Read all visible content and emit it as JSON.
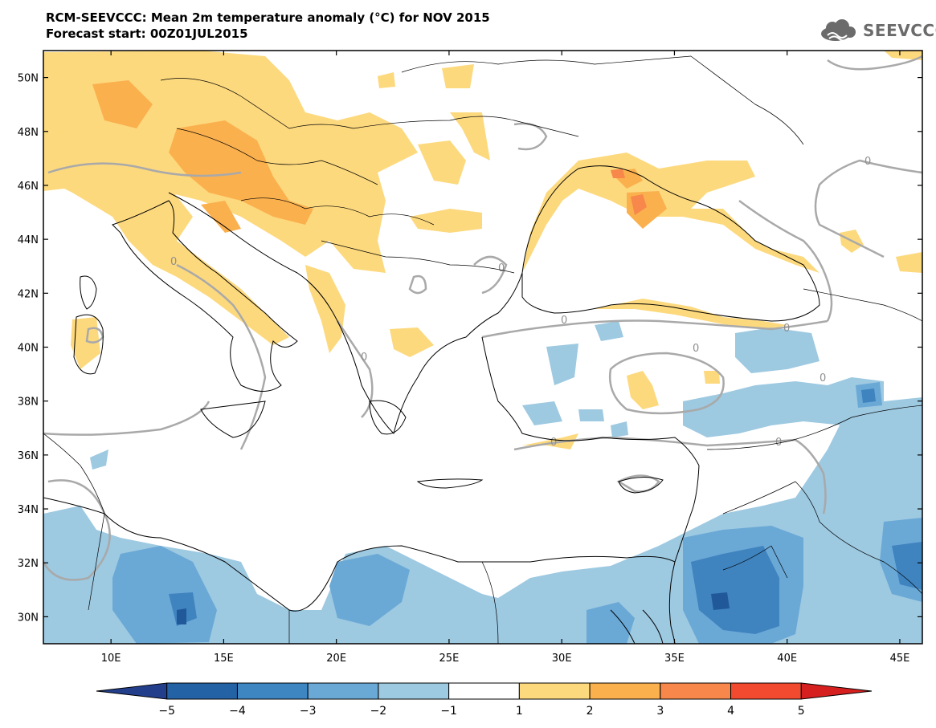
{
  "title": {
    "line1": "RCM-SEEVCCC: Mean 2m temperature anomaly (°C) for NOV 2015",
    "line2": "Forecast start: 00Z01JUL2015"
  },
  "logo": {
    "text": "SEEVCCC",
    "icon": "cloud-icon"
  },
  "map": {
    "lon_range": [
      7,
      46
    ],
    "lat_range": [
      29,
      51
    ],
    "lat_ticks": [
      {
        "value": 30,
        "label": "30N"
      },
      {
        "value": 32,
        "label": "32N"
      },
      {
        "value": 34,
        "label": "34N"
      },
      {
        "value": 36,
        "label": "36N"
      },
      {
        "value": 38,
        "label": "38N"
      },
      {
        "value": 40,
        "label": "40N"
      },
      {
        "value": 42,
        "label": "42N"
      },
      {
        "value": 44,
        "label": "44N"
      },
      {
        "value": 46,
        "label": "46N"
      },
      {
        "value": 48,
        "label": "48N"
      },
      {
        "value": 50,
        "label": "50N"
      }
    ],
    "lon_ticks": [
      {
        "value": 10,
        "label": "10E"
      },
      {
        "value": 15,
        "label": "15E"
      },
      {
        "value": 20,
        "label": "20E"
      },
      {
        "value": 25,
        "label": "25E"
      },
      {
        "value": 30,
        "label": "30E"
      },
      {
        "value": 35,
        "label": "35E"
      },
      {
        "value": 40,
        "label": "40E"
      },
      {
        "value": 45,
        "label": "45E"
      }
    ],
    "contour_label": "0",
    "colors": {
      "pos1": "#fdd97e",
      "pos2": "#fbb04e",
      "pos3": "#f7874b",
      "neg1": "#9dc9e1",
      "neg2": "#6aa8d6",
      "neg3": "#3f83bf",
      "neg4": "#20589a",
      "contour": "#a9a9a9",
      "border": "#000000"
    }
  },
  "colorbar": {
    "labels": [
      "−5",
      "−4",
      "−3",
      "−2",
      "−1",
      "1",
      "2",
      "3",
      "4",
      "5"
    ],
    "colors": [
      "#233e8b",
      "#2462a6",
      "#3e86c2",
      "#6aa8d6",
      "#9dc9e1",
      "#ffffff",
      "#fdd97e",
      "#fbb04e",
      "#f7874b",
      "#f24a2f",
      "#d6201f"
    ]
  }
}
